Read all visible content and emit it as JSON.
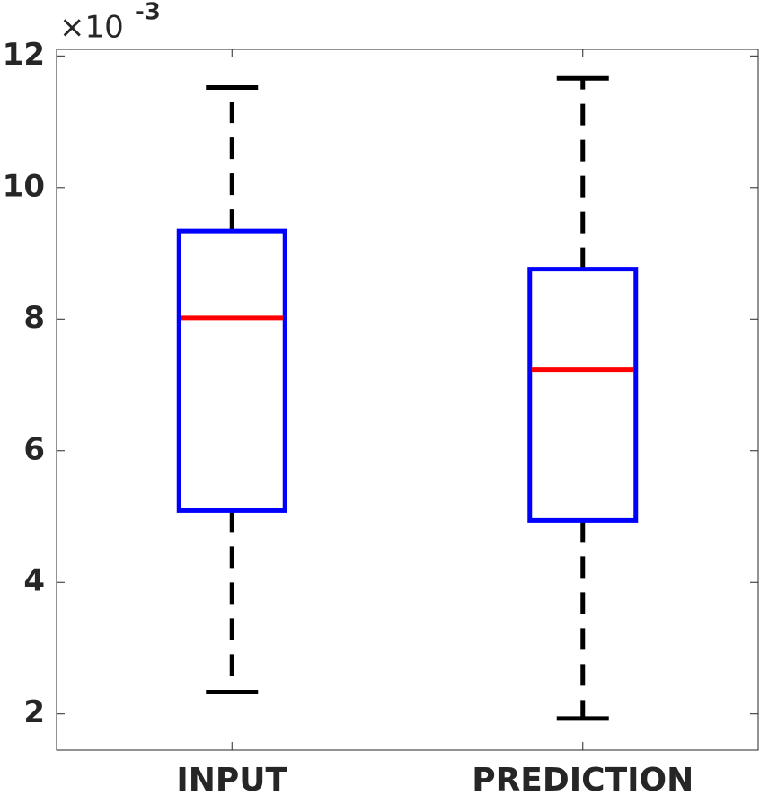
{
  "chart_data": {
    "type": "box",
    "categories": [
      "INPUT",
      "PREDICTION"
    ],
    "boxes": [
      {
        "whislo": 2.33,
        "q1": 5.09,
        "med": 8.02,
        "q3": 9.34,
        "whishi": 11.52
      },
      {
        "whislo": 1.93,
        "q1": 4.94,
        "med": 7.23,
        "q3": 8.76,
        "whishi": 11.66
      }
    ],
    "box_color": "#0000ff",
    "median_color": "#ff0000",
    "whisker_color": "#000000",
    "ylim": [
      1.45,
      12.1
    ],
    "yticks": [
      2,
      4,
      6,
      8,
      10,
      12
    ],
    "y_multiplier": "×10",
    "y_exponent": "-3"
  }
}
